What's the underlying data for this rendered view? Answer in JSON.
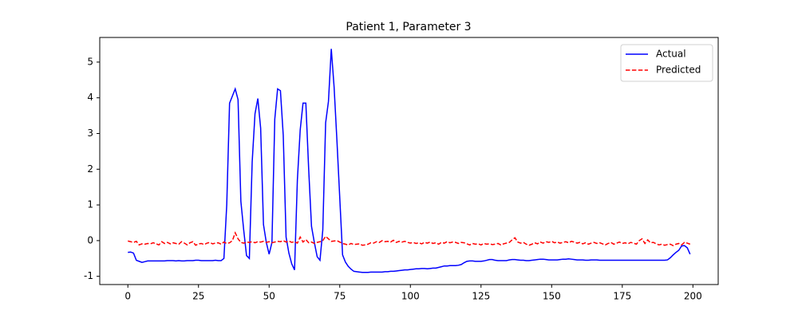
{
  "chart_data": {
    "type": "line",
    "title": "Patient 1, Parameter 3",
    "x": [
      0,
      1,
      2,
      3,
      4,
      5,
      6,
      7,
      8,
      9,
      10,
      11,
      12,
      13,
      14,
      15,
      16,
      17,
      18,
      19,
      20,
      21,
      22,
      23,
      24,
      25,
      26,
      27,
      28,
      29,
      30,
      31,
      32,
      33,
      34,
      35,
      36,
      37,
      38,
      39,
      40,
      41,
      42,
      43,
      44,
      45,
      46,
      47,
      48,
      49,
      50,
      51,
      52,
      53,
      54,
      55,
      56,
      57,
      58,
      59,
      60,
      61,
      62,
      63,
      64,
      65,
      66,
      67,
      68,
      69,
      70,
      71,
      72,
      73,
      74,
      75,
      76,
      77,
      78,
      79,
      80,
      81,
      82,
      83,
      84,
      85,
      86,
      87,
      88,
      89,
      90,
      91,
      92,
      93,
      94,
      95,
      96,
      97,
      98,
      99,
      100,
      101,
      102,
      103,
      104,
      105,
      106,
      107,
      108,
      109,
      110,
      111,
      112,
      113,
      114,
      115,
      116,
      117,
      118,
      119,
      120,
      121,
      122,
      123,
      124,
      125,
      126,
      127,
      128,
      129,
      130,
      131,
      132,
      133,
      134,
      135,
      136,
      137,
      138,
      139,
      140,
      141,
      142,
      143,
      144,
      145,
      146,
      147,
      148,
      149,
      150,
      151,
      152,
      153,
      154,
      155,
      156,
      157,
      158,
      159,
      160,
      161,
      162,
      163,
      164,
      165,
      166,
      167,
      168,
      169,
      170,
      171,
      172,
      173,
      174,
      175,
      176,
      177,
      178,
      179,
      180,
      181,
      182,
      183,
      184,
      185,
      186,
      187,
      188,
      189,
      190,
      191,
      192,
      193,
      194,
      195,
      196,
      197,
      198,
      199
    ],
    "series": [
      {
        "name": "Actual",
        "color": "#0000ff",
        "dashed": false,
        "values": [
          -0.33,
          -0.32,
          -0.35,
          -0.55,
          -0.58,
          -0.61,
          -0.59,
          -0.57,
          -0.57,
          -0.57,
          -0.57,
          -0.57,
          -0.57,
          -0.57,
          -0.56,
          -0.56,
          -0.56,
          -0.57,
          -0.56,
          -0.57,
          -0.57,
          -0.56,
          -0.56,
          -0.56,
          -0.55,
          -0.55,
          -0.56,
          -0.56,
          -0.56,
          -0.56,
          -0.56,
          -0.55,
          -0.56,
          -0.56,
          -0.5,
          1.0,
          3.85,
          4.05,
          4.25,
          3.95,
          1.1,
          0.3,
          -0.42,
          -0.5,
          2.2,
          3.55,
          3.98,
          3.15,
          0.45,
          -0.05,
          -0.38,
          -0.05,
          3.4,
          4.25,
          4.2,
          2.95,
          0.1,
          -0.35,
          -0.65,
          -0.82,
          1.7,
          3.1,
          3.85,
          3.85,
          2.0,
          0.4,
          -0.05,
          -0.45,
          -0.55,
          0.3,
          3.3,
          3.9,
          5.37,
          4.3,
          2.8,
          1.2,
          -0.4,
          -0.6,
          -0.72,
          -0.8,
          -0.86,
          -0.87,
          -0.88,
          -0.89,
          -0.89,
          -0.89,
          -0.88,
          -0.88,
          -0.88,
          -0.88,
          -0.88,
          -0.87,
          -0.87,
          -0.86,
          -0.86,
          -0.85,
          -0.84,
          -0.83,
          -0.82,
          -0.82,
          -0.81,
          -0.8,
          -0.79,
          -0.79,
          -0.78,
          -0.78,
          -0.79,
          -0.78,
          -0.77,
          -0.77,
          -0.75,
          -0.73,
          -0.71,
          -0.71,
          -0.7,
          -0.7,
          -0.7,
          -0.69,
          -0.67,
          -0.62,
          -0.58,
          -0.57,
          -0.57,
          -0.58,
          -0.58,
          -0.58,
          -0.57,
          -0.55,
          -0.53,
          -0.53,
          -0.55,
          -0.56,
          -0.56,
          -0.56,
          -0.56,
          -0.54,
          -0.53,
          -0.53,
          -0.54,
          -0.55,
          -0.55,
          -0.56,
          -0.56,
          -0.55,
          -0.54,
          -0.53,
          -0.52,
          -0.52,
          -0.53,
          -0.54,
          -0.54,
          -0.54,
          -0.54,
          -0.53,
          -0.52,
          -0.52,
          -0.51,
          -0.52,
          -0.53,
          -0.54,
          -0.54,
          -0.54,
          -0.55,
          -0.55,
          -0.54,
          -0.54,
          -0.54,
          -0.55,
          -0.55,
          -0.55,
          -0.55,
          -0.55,
          -0.55,
          -0.55,
          -0.55,
          -0.55,
          -0.55,
          -0.55,
          -0.55,
          -0.55,
          -0.55,
          -0.55,
          -0.55,
          -0.55,
          -0.55,
          -0.55,
          -0.55,
          -0.55,
          -0.55,
          -0.55,
          -0.55,
          -0.54,
          -0.48,
          -0.4,
          -0.33,
          -0.27,
          -0.15,
          -0.14,
          -0.2,
          -0.38
        ]
      },
      {
        "name": "Predicted",
        "color": "#ff0000",
        "dashed": true,
        "values": [
          -0.01,
          -0.03,
          -0.05,
          -0.02,
          -0.12,
          -0.09,
          -0.1,
          -0.08,
          -0.09,
          -0.06,
          -0.09,
          -0.12,
          -0.03,
          -0.08,
          -0.05,
          -0.09,
          -0.06,
          -0.08,
          -0.1,
          -0.03,
          -0.07,
          -0.12,
          -0.06,
          -0.03,
          -0.13,
          -0.09,
          -0.08,
          -0.11,
          -0.07,
          -0.05,
          -0.09,
          -0.07,
          -0.06,
          -0.1,
          -0.04,
          -0.08,
          -0.06,
          0.0,
          0.22,
          0.05,
          -0.05,
          -0.07,
          -0.04,
          -0.05,
          -0.03,
          -0.06,
          -0.03,
          -0.04,
          -0.02,
          -0.05,
          -0.03,
          -0.06,
          -0.04,
          -0.02,
          -0.03,
          0.0,
          -0.04,
          -0.01,
          -0.05,
          -0.03,
          -0.07,
          0.1,
          -0.04,
          0.03,
          -0.06,
          -0.04,
          -0.08,
          -0.05,
          -0.03,
          0.0,
          0.12,
          0.05,
          -0.02,
          -0.01,
          0.0,
          -0.04,
          -0.08,
          -0.1,
          -0.12,
          -0.08,
          -0.11,
          -0.1,
          -0.09,
          -0.13,
          -0.12,
          -0.1,
          -0.06,
          -0.07,
          -0.03,
          -0.05,
          0.0,
          -0.03,
          -0.02,
          -0.04,
          0.01,
          -0.05,
          -0.02,
          -0.04,
          -0.02,
          -0.05,
          -0.07,
          -0.05,
          -0.08,
          -0.06,
          -0.09,
          -0.05,
          -0.07,
          -0.04,
          -0.08,
          -0.06,
          -0.1,
          -0.05,
          -0.07,
          -0.03,
          -0.06,
          -0.04,
          -0.05,
          -0.08,
          -0.05,
          -0.06,
          -0.09,
          -0.12,
          -0.08,
          -0.1,
          -0.09,
          -0.12,
          -0.08,
          -0.1,
          -0.09,
          -0.11,
          -0.1,
          -0.08,
          -0.12,
          -0.09,
          -0.07,
          -0.05,
          0.02,
          0.08,
          -0.04,
          -0.07,
          -0.05,
          -0.1,
          -0.13,
          -0.1,
          -0.06,
          -0.09,
          -0.04,
          -0.07,
          -0.03,
          -0.05,
          -0.02,
          -0.06,
          -0.04,
          -0.07,
          -0.05,
          -0.03,
          -0.06,
          -0.02,
          -0.04,
          -0.07,
          -0.05,
          -0.09,
          -0.06,
          -0.1,
          -0.07,
          -0.05,
          -0.08,
          -0.06,
          -0.09,
          -0.12,
          -0.08,
          -0.05,
          -0.1,
          -0.07,
          -0.04,
          -0.08,
          -0.06,
          -0.09,
          -0.05,
          -0.07,
          -0.1,
          0.0,
          0.05,
          -0.08,
          0.02,
          -0.06,
          -0.05,
          -0.09,
          -0.12,
          -0.1,
          -0.13,
          -0.11,
          -0.1,
          -0.14,
          -0.1,
          -0.08,
          -0.12,
          -0.05,
          -0.07,
          -0.1
        ]
      }
    ],
    "xlim": [
      -9.95,
      208.95
    ],
    "ylim": [
      -1.23,
      5.69
    ],
    "xticks": [
      0,
      25,
      50,
      75,
      100,
      125,
      150,
      175,
      200
    ],
    "yticks": [
      -1,
      0,
      1,
      2,
      3,
      4,
      5
    ],
    "legend": "upper right"
  }
}
